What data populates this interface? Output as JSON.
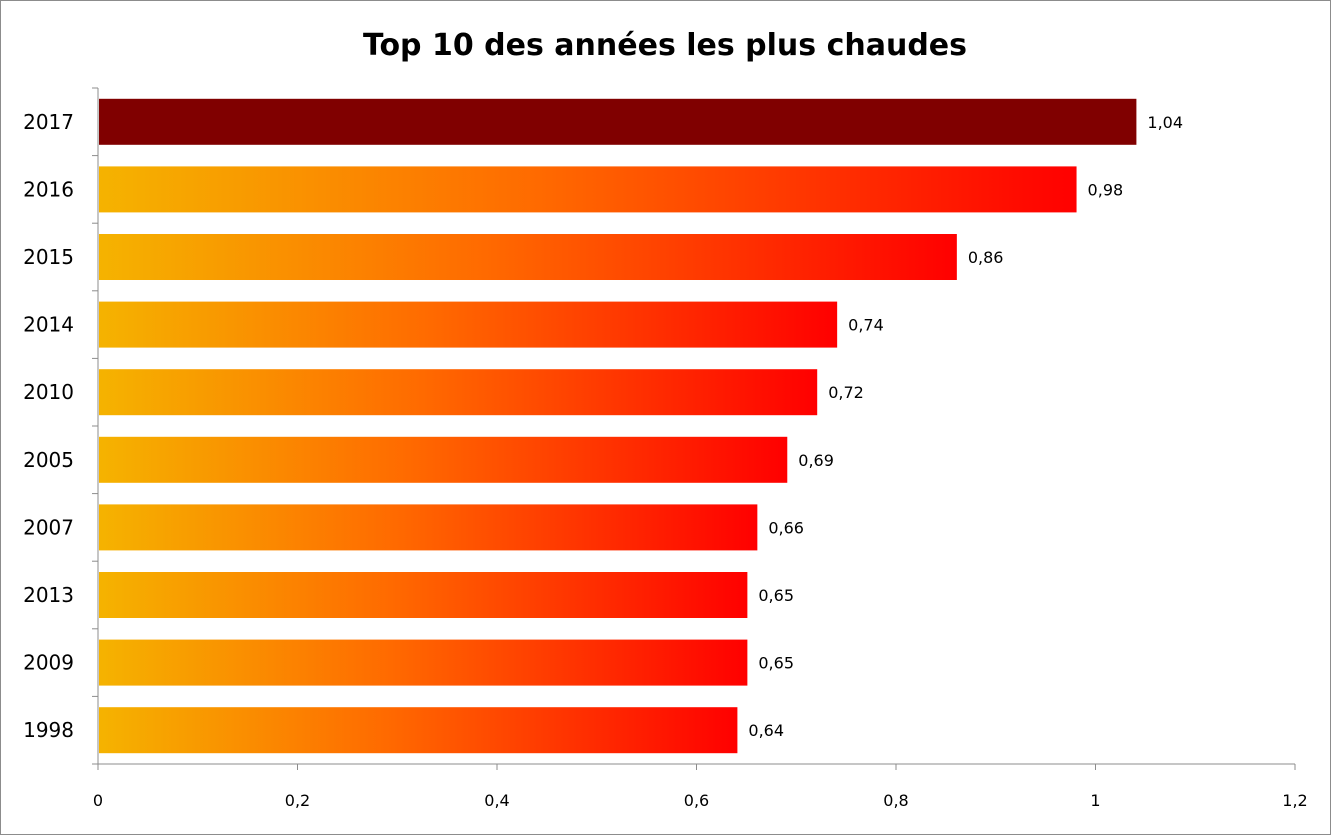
{
  "chart_data": {
    "type": "bar",
    "orientation": "horizontal",
    "title": "Top 10 des années les plus chaudes",
    "categories": [
      "2017",
      "2016",
      "2015",
      "2014",
      "2010",
      "2005",
      "2007",
      "2013",
      "2009",
      "1998"
    ],
    "values": [
      1.04,
      0.98,
      0.86,
      0.74,
      0.72,
      0.69,
      0.66,
      0.65,
      0.65,
      0.64
    ],
    "value_labels": [
      "1,04",
      "0,98",
      "0,86",
      "0,74",
      "0,72",
      "0,69",
      "0,66",
      "0,65",
      "0,65",
      "0,64"
    ],
    "xlim": [
      0,
      1.2
    ],
    "x_ticks": [
      0,
      0.2,
      0.4,
      0.6,
      0.8,
      1,
      1.2
    ],
    "x_tick_labels": [
      "0",
      "0,2",
      "0,4",
      "0,6",
      "0,8",
      "1",
      "1,2"
    ],
    "xlabel": "",
    "ylabel": "",
    "grid": false,
    "legend": "none",
    "colors": {
      "highlight": "#800000",
      "gradient_start": "#f5b300",
      "gradient_mid": "#ff6a00",
      "gradient_end": "#ff0000",
      "axis": "#8c8c8c"
    }
  }
}
